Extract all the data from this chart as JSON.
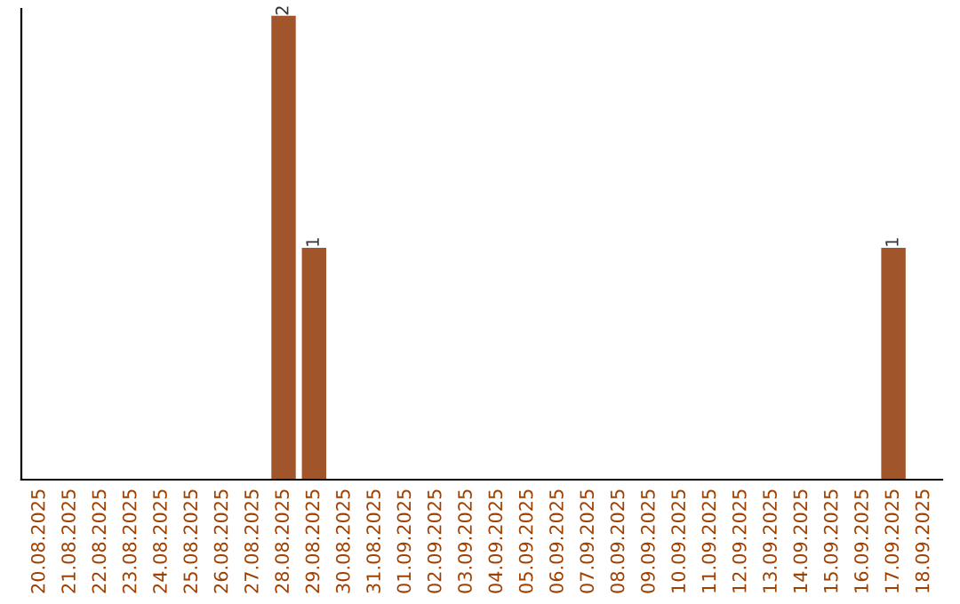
{
  "chart_data": {
    "type": "bar",
    "categories": [
      "20.08.2025",
      "21.08.2025",
      "22.08.2025",
      "23.08.2025",
      "24.08.2025",
      "25.08.2025",
      "26.08.2025",
      "27.08.2025",
      "28.08.2025",
      "29.08.2025",
      "30.08.2025",
      "31.08.2025",
      "01.09.2025",
      "02.09.2025",
      "03.09.2025",
      "04.09.2025",
      "05.09.2025",
      "06.09.2025",
      "07.09.2025",
      "08.09.2025",
      "09.09.2025",
      "10.09.2025",
      "11.09.2025",
      "12.09.2025",
      "13.09.2025",
      "14.09.2025",
      "15.09.2025",
      "16.09.2025",
      "17.09.2025",
      "18.09.2025"
    ],
    "values": [
      0,
      0,
      0,
      0,
      0,
      0,
      0,
      0,
      2,
      1,
      0,
      0,
      0,
      0,
      0,
      0,
      0,
      0,
      0,
      0,
      0,
      0,
      0,
      0,
      0,
      0,
      0,
      0,
      1,
      0
    ],
    "value_labels": [
      null,
      null,
      null,
      null,
      null,
      null,
      null,
      null,
      "2",
      "1",
      null,
      null,
      null,
      null,
      null,
      null,
      null,
      null,
      null,
      null,
      null,
      null,
      null,
      null,
      null,
      null,
      null,
      null,
      "1",
      null
    ],
    "color": "#a0562a",
    "ylim": [
      0,
      2.03
    ],
    "tick_labels": "x",
    "grid": false,
    "legend": false
  }
}
